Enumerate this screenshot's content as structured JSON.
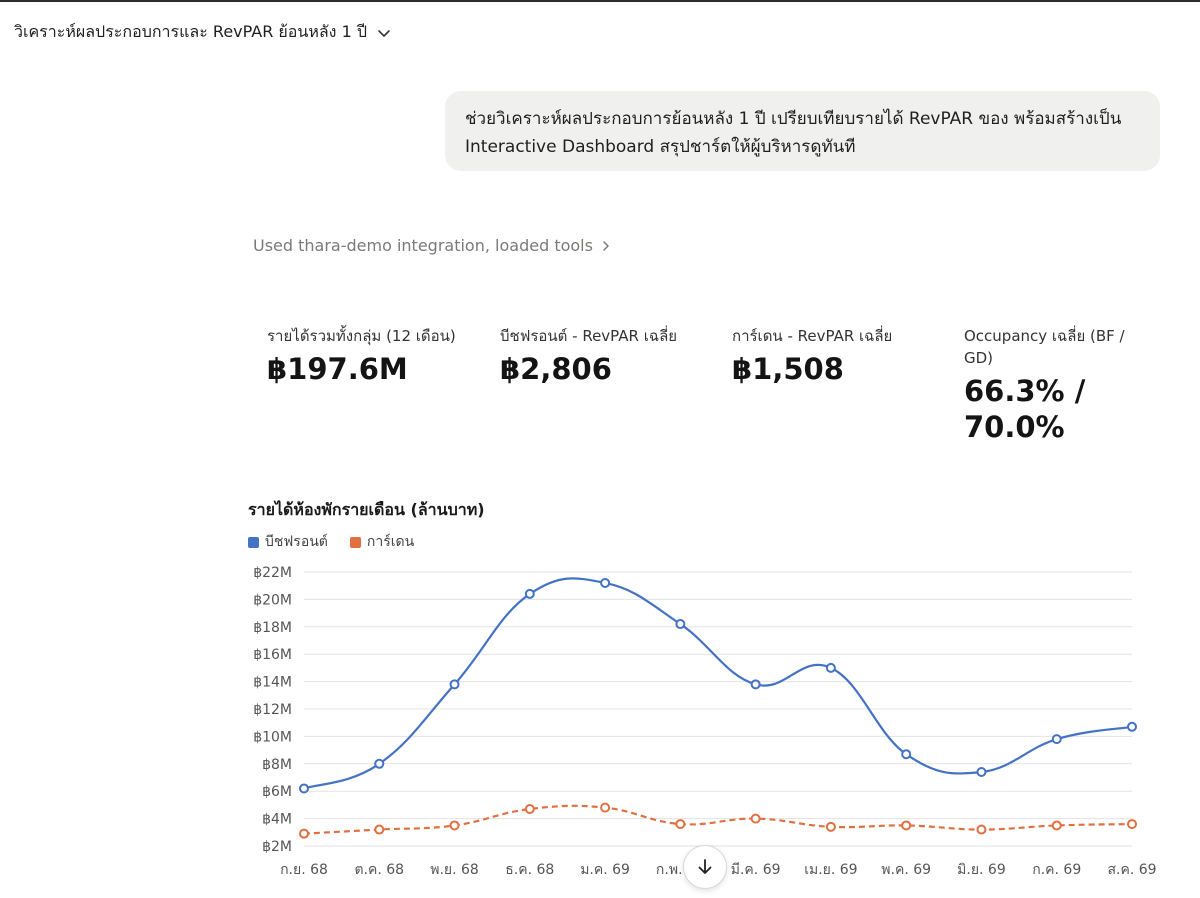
{
  "header": {
    "conversation_title": "วิเคราะห์ผลประกอบการและ RevPAR ย้อนหลัง 1 ปี",
    "chevron_icon": "chevron-down-icon"
  },
  "message": {
    "user_text": "ช่วยวิเคราะห์ผลประกอบการย้อนหลัง 1 ปี เปรียบเทียบรายได้ RevPAR ของ พร้อมสร้างเป็น Interactive Dashboard สรุปชาร์ตให้ผู้บริหารดูทันที"
  },
  "tools_status": {
    "text": "Used thara-demo integration, loaded tools",
    "icon": "chevron-right-icon"
  },
  "kpis": [
    {
      "label": "รายได้รวมทั้งกลุ่ม (12 เดือน)",
      "value": "฿197.6M"
    },
    {
      "label": "บีชฟรอนต์ - RevPAR เฉลี่ย",
      "value": "฿2,806"
    },
    {
      "label": "การ์เดน - RevPAR เฉลี่ย",
      "value": "฿1,508"
    },
    {
      "label": "Occupancy เฉลี่ย (BF / GD)",
      "value": "66.3% / 70.0%"
    }
  ],
  "chart_data": {
    "type": "line",
    "title": "รายได้ห้องพักรายเดือน (ล้านบาท)",
    "categories": [
      "ก.ย. 68",
      "ต.ค. 68",
      "พ.ย. 68",
      "ธ.ค. 68",
      "ม.ค. 69",
      "ก.พ. 69",
      "มี.ค. 69",
      "เม.ย. 69",
      "พ.ค. 69",
      "มิ.ย. 69",
      "ก.ค. 69",
      "ส.ค. 69"
    ],
    "series": [
      {
        "name": "บีชฟรอนต์",
        "color": "#4472c4",
        "style": "solid",
        "values": [
          6.2,
          8.0,
          13.8,
          20.4,
          21.2,
          18.2,
          13.8,
          15.0,
          8.7,
          7.4,
          9.8,
          10.7
        ]
      },
      {
        "name": "การ์เดน",
        "color": "#e07040",
        "style": "dashed",
        "values": [
          2.9,
          3.2,
          3.5,
          4.7,
          4.8,
          3.6,
          4.0,
          3.4,
          3.5,
          3.2,
          3.5,
          3.6
        ]
      }
    ],
    "ylim": [
      2,
      22
    ],
    "yticks": [
      2,
      4,
      6,
      8,
      10,
      12,
      14,
      16,
      18,
      20,
      22
    ],
    "ytick_labels": [
      "฿2M",
      "฿4M",
      "฿6M",
      "฿8M",
      "฿10M",
      "฿12M",
      "฿14M",
      "฿16M",
      "฿18M",
      "฿20M",
      "฿22M"
    ],
    "grid": true,
    "legend": "top-left"
  },
  "scroll_button": {
    "icon": "arrow-down-icon"
  }
}
